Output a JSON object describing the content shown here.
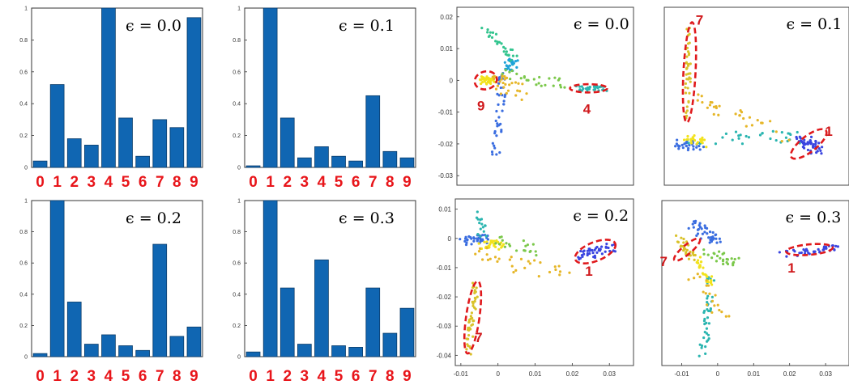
{
  "chart_data": [
    {
      "id": "bar-0",
      "type": "bar",
      "title": "ϵ = 0.0",
      "categories": [
        "0",
        "1",
        "2",
        "3",
        "4",
        "5",
        "6",
        "7",
        "8",
        "9"
      ],
      "values": [
        0.04,
        0.52,
        0.18,
        0.14,
        1.0,
        0.31,
        0.07,
        0.3,
        0.25,
        0.94
      ],
      "ylim": [
        0,
        1
      ],
      "yticks": [
        "0",
        "0.2",
        "0.4",
        "0.6",
        "0.8",
        "1"
      ],
      "bar_color": "#1066b2"
    },
    {
      "id": "bar-1",
      "type": "bar",
      "title": "ϵ = 0.1",
      "categories": [
        "0",
        "1",
        "2",
        "3",
        "4",
        "5",
        "6",
        "7",
        "8",
        "9"
      ],
      "values": [
        0.01,
        1.0,
        0.31,
        0.06,
        0.13,
        0.07,
        0.04,
        0.45,
        0.1,
        0.06
      ],
      "ylim": [
        0,
        1
      ],
      "yticks": [
        "0",
        "0.2",
        "0.4",
        "0.6",
        "0.8",
        "1"
      ],
      "bar_color": "#1066b2"
    },
    {
      "id": "bar-2",
      "type": "bar",
      "title": "ϵ = 0.2",
      "categories": [
        "0",
        "1",
        "2",
        "3",
        "4",
        "5",
        "6",
        "7",
        "8",
        "9"
      ],
      "values": [
        0.02,
        1.0,
        0.35,
        0.08,
        0.14,
        0.07,
        0.04,
        0.72,
        0.13,
        0.19
      ],
      "ylim": [
        0,
        1
      ],
      "yticks": [
        "0",
        "0.2",
        "0.4",
        "0.6",
        "0.8",
        "1"
      ],
      "bar_color": "#1066b2"
    },
    {
      "id": "bar-3",
      "type": "bar",
      "title": "ϵ = 0.3",
      "categories": [
        "0",
        "1",
        "2",
        "3",
        "4",
        "5",
        "6",
        "7",
        "8",
        "9"
      ],
      "values": [
        0.03,
        1.0,
        0.44,
        0.08,
        0.62,
        0.07,
        0.06,
        0.44,
        0.15,
        0.31
      ],
      "ylim": [
        0,
        1
      ],
      "yticks": [
        "0",
        "0.2",
        "0.4",
        "0.6",
        "0.8",
        "1"
      ],
      "bar_color": "#1066b2"
    },
    {
      "id": "scatter-0",
      "type": "scatter",
      "title": "ϵ = 0.0",
      "xlim": [
        -0.015,
        0.04
      ],
      "ylim": [
        -0.033,
        0.023
      ],
      "yticks": [
        0.02,
        0.01,
        0,
        -0.01,
        -0.02,
        -0.03
      ],
      "ytick_labels": [
        "0.02",
        "0.01",
        "0",
        "-0.01",
        "-0.02",
        "-0.03"
      ],
      "xticks": [],
      "xtick_labels": [],
      "clusters": [
        {
          "color": "#f2e21c",
          "from": [
            -0.007,
            0.0
          ],
          "to": [
            -0.004,
            0.0
          ],
          "n": 40,
          "spread": 0.0012
        },
        {
          "color": "#2ab5b0",
          "from": [
            0.022,
            -0.0025
          ],
          "to": [
            0.031,
            -0.0025
          ],
          "n": 35,
          "spread": 0.0008
        },
        {
          "color": "#3a6de0",
          "from": [
            -0.0005,
            0.003
          ],
          "to": [
            -0.003,
            -0.024
          ],
          "n": 40,
          "spread": 0.0012
        },
        {
          "color": "#32c48e",
          "from": [
            -0.006,
            0.016
          ],
          "to": [
            0.003,
            0.006
          ],
          "n": 30,
          "spread": 0.0015
        },
        {
          "color": "#1ea3d8",
          "from": [
            0.001,
            0.004
          ],
          "to": [
            0.003,
            0.006
          ],
          "n": 20,
          "spread": 0.0015
        },
        {
          "color": "#e6b627",
          "from": [
            -0.004,
            0.0
          ],
          "to": [
            0.005,
            -0.004
          ],
          "n": 30,
          "spread": 0.003
        },
        {
          "color": "#7bc84a",
          "from": [
            0.0,
            0.002
          ],
          "to": [
            0.02,
            -0.002
          ],
          "n": 25,
          "spread": 0.002
        }
      ],
      "annotations": [
        {
          "label": "9",
          "ellipse": {
            "cx": -0.006,
            "cy": 0.0,
            "rx": 0.0035,
            "ry": 0.0028,
            "rot": -15
          },
          "text_at": [
            -0.0075,
            -0.0095
          ]
        },
        {
          "label": "4",
          "ellipse": {
            "cx": 0.026,
            "cy": -0.0025,
            "rx": 0.0058,
            "ry": 0.0013,
            "rot": 0
          },
          "text_at": [
            0.0255,
            -0.0105
          ]
        }
      ]
    },
    {
      "id": "scatter-1",
      "type": "scatter",
      "title": "ϵ = 0.1",
      "xlim": [
        -0.015,
        0.04
      ],
      "ylim": [
        -0.033,
        0.023
      ],
      "yticks": [],
      "ytick_labels": [],
      "xticks": [],
      "xtick_labels": [],
      "clusters": [
        {
          "color": "#d9c22a",
          "from": [
            -0.008,
            0.017
          ],
          "to": [
            -0.008,
            -0.013
          ],
          "n": 40,
          "spread": 0.0008
        },
        {
          "color": "#3a45e0",
          "from": [
            0.025,
            -0.018
          ],
          "to": [
            0.031,
            -0.022
          ],
          "n": 45,
          "spread": 0.0017
        },
        {
          "color": "#3a6de0",
          "from": [
            -0.012,
            -0.02
          ],
          "to": [
            -0.004,
            -0.021
          ],
          "n": 30,
          "spread": 0.0015
        },
        {
          "color": "#2ab5b0",
          "from": [
            -0.008,
            -0.018
          ],
          "to": [
            0.025,
            -0.018
          ],
          "n": 30,
          "spread": 0.002
        },
        {
          "color": "#e6b627",
          "from": [
            -0.006,
            -0.005
          ],
          "to": [
            0.02,
            -0.018
          ],
          "n": 30,
          "spread": 0.003
        },
        {
          "color": "#f2e21c",
          "from": [
            -0.009,
            -0.017
          ],
          "to": [
            -0.003,
            -0.02
          ],
          "n": 20,
          "spread": 0.0015
        }
      ],
      "annotations": [
        {
          "label": "7",
          "ellipse": {
            "cx": -0.0075,
            "cy": 0.0025,
            "rx": 0.0018,
            "ry": 0.0158,
            "rot": 3
          },
          "text_at": [
            -0.0045,
            0.0175
          ]
        },
        {
          "label": "1",
          "ellipse": {
            "cx": 0.028,
            "cy": -0.02,
            "rx": 0.0065,
            "ry": 0.0025,
            "rot": -38
          },
          "text_at": [
            0.034,
            -0.0175
          ]
        }
      ]
    },
    {
      "id": "scatter-2",
      "type": "scatter",
      "title": "ϵ = 0.2",
      "xlim": [
        -0.0115,
        0.0365
      ],
      "ylim": [
        -0.0435,
        0.0135
      ],
      "yticks": [
        0.01,
        0,
        -0.01,
        -0.02,
        -0.03,
        -0.04
      ],
      "ytick_labels": [
        "0.01",
        "0",
        "-0.01",
        "-0.02",
        "-0.03",
        "-0.04"
      ],
      "xticks": [
        -0.01,
        0,
        0.01,
        0.02,
        0.03
      ],
      "xtick_labels": [
        "-0.01",
        "0",
        "0.01",
        "0.02",
        "0.03"
      ],
      "clusters": [
        {
          "color": "#d9c22a",
          "from": [
            -0.006,
            -0.014
          ],
          "to": [
            -0.008,
            -0.039
          ],
          "n": 45,
          "spread": 0.0009
        },
        {
          "color": "#3a45e0",
          "from": [
            0.022,
            -0.006
          ],
          "to": [
            0.031,
            -0.003
          ],
          "n": 45,
          "spread": 0.0016
        },
        {
          "color": "#3a6de0",
          "from": [
            -0.01,
            -0.001
          ],
          "to": [
            -0.003,
            0.0
          ],
          "n": 35,
          "spread": 0.0015
        },
        {
          "color": "#f2e21c",
          "from": [
            -0.004,
            -0.002
          ],
          "to": [
            0.0,
            -0.002
          ],
          "n": 30,
          "spread": 0.0018
        },
        {
          "color": "#e6b627",
          "from": [
            -0.006,
            -0.006
          ],
          "to": [
            0.02,
            -0.012
          ],
          "n": 30,
          "spread": 0.003
        },
        {
          "color": "#2ab5b0",
          "from": [
            -0.005,
            0.009
          ],
          "to": [
            -0.004,
            0.0
          ],
          "n": 15,
          "spread": 0.0012
        },
        {
          "color": "#7bc84a",
          "from": [
            -0.002,
            0.0
          ],
          "to": [
            0.01,
            -0.004
          ],
          "n": 20,
          "spread": 0.002
        }
      ],
      "annotations": [
        {
          "label": "7",
          "ellipse": {
            "cx": -0.0068,
            "cy": -0.027,
            "rx": 0.0018,
            "ry": 0.0125,
            "rot": 8
          },
          "text_at": [
            -0.0052,
            -0.0355
          ]
        },
        {
          "label": "1",
          "ellipse": {
            "cx": 0.0262,
            "cy": -0.0045,
            "rx": 0.0058,
            "ry": 0.0032,
            "rot": -22
          },
          "text_at": [
            0.0245,
            -0.0128
          ]
        }
      ]
    },
    {
      "id": "scatter-3",
      "type": "scatter",
      "title": "ϵ = 0.3",
      "xlim": [
        -0.0155,
        0.0365
      ],
      "ylim": [
        -0.031,
        0.0195
      ],
      "yticks": [],
      "ytick_labels": [],
      "xticks": [
        -0.01,
        0,
        0.01,
        0.02,
        0.03
      ],
      "xtick_labels": [
        "-0.01",
        "0",
        "0.01",
        "0.02",
        "0.03"
      ],
      "clusters": [
        {
          "color": "#3a45e0",
          "from": [
            0.018,
            0.003
          ],
          "to": [
            0.033,
            0.005
          ],
          "n": 40,
          "spread": 0.0009
        },
        {
          "color": "#3a6de0",
          "from": [
            -0.008,
            0.013
          ],
          "to": [
            0.0,
            0.007
          ],
          "n": 40,
          "spread": 0.0017
        },
        {
          "color": "#2ab5b0",
          "from": [
            -0.002,
            -0.003
          ],
          "to": [
            -0.004,
            -0.028
          ],
          "n": 40,
          "spread": 0.0012
        },
        {
          "color": "#d9c22a",
          "from": [
            -0.011,
            0.008
          ],
          "to": [
            -0.007,
            0.002
          ],
          "n": 30,
          "spread": 0.0012
        },
        {
          "color": "#f2e21c",
          "from": [
            -0.005,
            0.002
          ],
          "to": [
            -0.002,
            -0.006
          ],
          "n": 25,
          "spread": 0.0015
        },
        {
          "color": "#7bc84a",
          "from": [
            -0.003,
            0.003
          ],
          "to": [
            0.005,
            0.001
          ],
          "n": 25,
          "spread": 0.0018
        },
        {
          "color": "#e6b627",
          "from": [
            -0.006,
            -0.004
          ],
          "to": [
            0.002,
            -0.016
          ],
          "n": 20,
          "spread": 0.0025
        }
      ],
      "annotations": [
        {
          "label": "7",
          "ellipse": {
            "cx": -0.0085,
            "cy": 0.0045,
            "rx": 0.0046,
            "ry": 0.0014,
            "rot": -40
          },
          "text_at": [
            -0.015,
            -0.0005
          ]
        },
        {
          "label": "1",
          "ellipse": {
            "cx": 0.0255,
            "cy": 0.0045,
            "rx": 0.0065,
            "ry": 0.0016,
            "rot": -5
          },
          "text_at": [
            0.0205,
            -0.0025
          ]
        }
      ]
    }
  ]
}
